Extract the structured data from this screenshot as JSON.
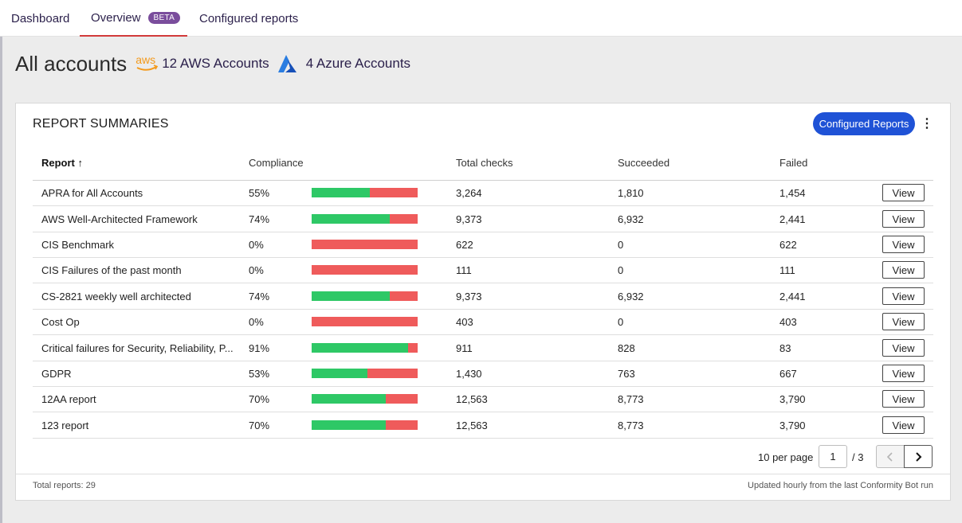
{
  "nav": {
    "tabs": [
      {
        "label": "Dashboard"
      },
      {
        "label": "Overview",
        "badge": "BETA"
      },
      {
        "label": "Configured reports"
      }
    ]
  },
  "header": {
    "title": "All accounts",
    "aws_label": "12 AWS Accounts",
    "aws_icon_text": "aws",
    "azure_label": "4 Azure Accounts"
  },
  "card": {
    "title": "REPORT SUMMARIES",
    "configured_button": "Configured Reports",
    "more_icon": "more-vertical-icon",
    "columns": {
      "report": "Report ↑",
      "compliance": "Compliance",
      "total": "Total checks",
      "succeeded": "Succeeded",
      "failed": "Failed"
    },
    "view_label": "View",
    "rows": [
      {
        "name": "APRA for All Accounts",
        "compliance": "55%",
        "fraction": 0.55,
        "total": "3,264",
        "succeeded": "1,810",
        "failed": "1,454"
      },
      {
        "name": "AWS Well-Architected Framework",
        "compliance": "74%",
        "fraction": 0.74,
        "total": "9,373",
        "succeeded": "6,932",
        "failed": "2,441"
      },
      {
        "name": "CIS Benchmark",
        "compliance": "0%",
        "fraction": 0.0,
        "total": "622",
        "succeeded": "0",
        "failed": "622"
      },
      {
        "name": "CIS Failures of the past month",
        "compliance": "0%",
        "fraction": 0.0,
        "total": "111",
        "succeeded": "0",
        "failed": "111"
      },
      {
        "name": "CS-2821 weekly well architected",
        "compliance": "74%",
        "fraction": 0.74,
        "total": "9,373",
        "succeeded": "6,932",
        "failed": "2,441"
      },
      {
        "name": "Cost Op",
        "compliance": "0%",
        "fraction": 0.0,
        "total": "403",
        "succeeded": "0",
        "failed": "403"
      },
      {
        "name": "Critical failures for Security, Reliability, P...",
        "compliance": "91%",
        "fraction": 0.91,
        "total": "911",
        "succeeded": "828",
        "failed": "83"
      },
      {
        "name": "GDPR",
        "compliance": "53%",
        "fraction": 0.53,
        "total": "1,430",
        "succeeded": "763",
        "failed": "667"
      },
      {
        "name": "12AA report",
        "compliance": "70%",
        "fraction": 0.7,
        "total": "12,563",
        "succeeded": "8,773",
        "failed": "3,790"
      },
      {
        "name": "123 report",
        "compliance": "70%",
        "fraction": 0.7,
        "total": "12,563",
        "succeeded": "8,773",
        "failed": "3,790"
      }
    ],
    "pagination": {
      "per_page": "10 per page",
      "current_page": "1",
      "total_pages": "/ 3"
    },
    "footer": {
      "total": "Total reports: 29",
      "updated": "Updated hourly from the last Conformity Bot run"
    }
  },
  "colors": {
    "pass": "#2ec866",
    "fail": "#ef5b5b",
    "primary_button": "#1f52d6",
    "beta_badge": "#7a4d9c",
    "active_tab_underline": "#d23a3a"
  }
}
